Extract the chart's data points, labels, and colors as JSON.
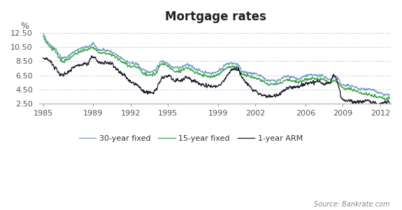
{
  "title": "Mortgage rates",
  "ylabel": "%",
  "source": "Source: Bankrate.com",
  "ylim": [
    2.5,
    13.5
  ],
  "yticks": [
    2.5,
    4.5,
    6.5,
    8.5,
    10.5,
    12.5
  ],
  "xticks": [
    1985,
    1989,
    1992,
    1995,
    1999,
    2002,
    2006,
    2009,
    2012
  ],
  "xlim": [
    1984.7,
    2012.9
  ],
  "color_30yr": "#7799cc",
  "color_15yr": "#33aa44",
  "color_arm": "#1a1a2e",
  "background_color": "#ffffff",
  "grid_color": "#cccccc",
  "legend_items": [
    "30-year fixed",
    "15-year fixed",
    "1-year ARM"
  ],
  "title_fontsize": 12,
  "tick_fontsize": 8,
  "label_fontsize": 8,
  "source_fontsize": 7,
  "seed": 42,
  "n_points": 1450,
  "x_start": 1985.0,
  "x_end": 2012.75
}
